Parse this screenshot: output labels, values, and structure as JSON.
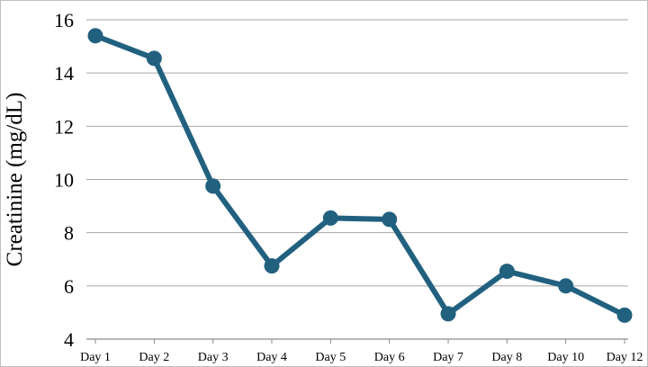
{
  "chart_data": {
    "type": "line",
    "title": "",
    "xlabel": "",
    "ylabel": "Creatinine (mg/dL)",
    "categories": [
      "Day 1",
      "Day 2",
      "Day 3",
      "Day 4",
      "Day 5",
      "Day 6",
      "Day 7",
      "Day 8",
      "Day 10",
      "Day 12"
    ],
    "series": [
      {
        "values": [
          15.4,
          14.55,
          9.75,
          6.75,
          8.55,
          8.5,
          4.95,
          6.55,
          6.0,
          4.9
        ]
      }
    ],
    "ylim": [
      4,
      16
    ],
    "yticks": [
      4,
      6,
      8,
      10,
      12,
      14,
      16
    ],
    "grid": true,
    "legend": "none",
    "colors": {
      "series": "#21617f",
      "grid": "#a6a6a6",
      "axis": "#8c8c8c"
    }
  }
}
